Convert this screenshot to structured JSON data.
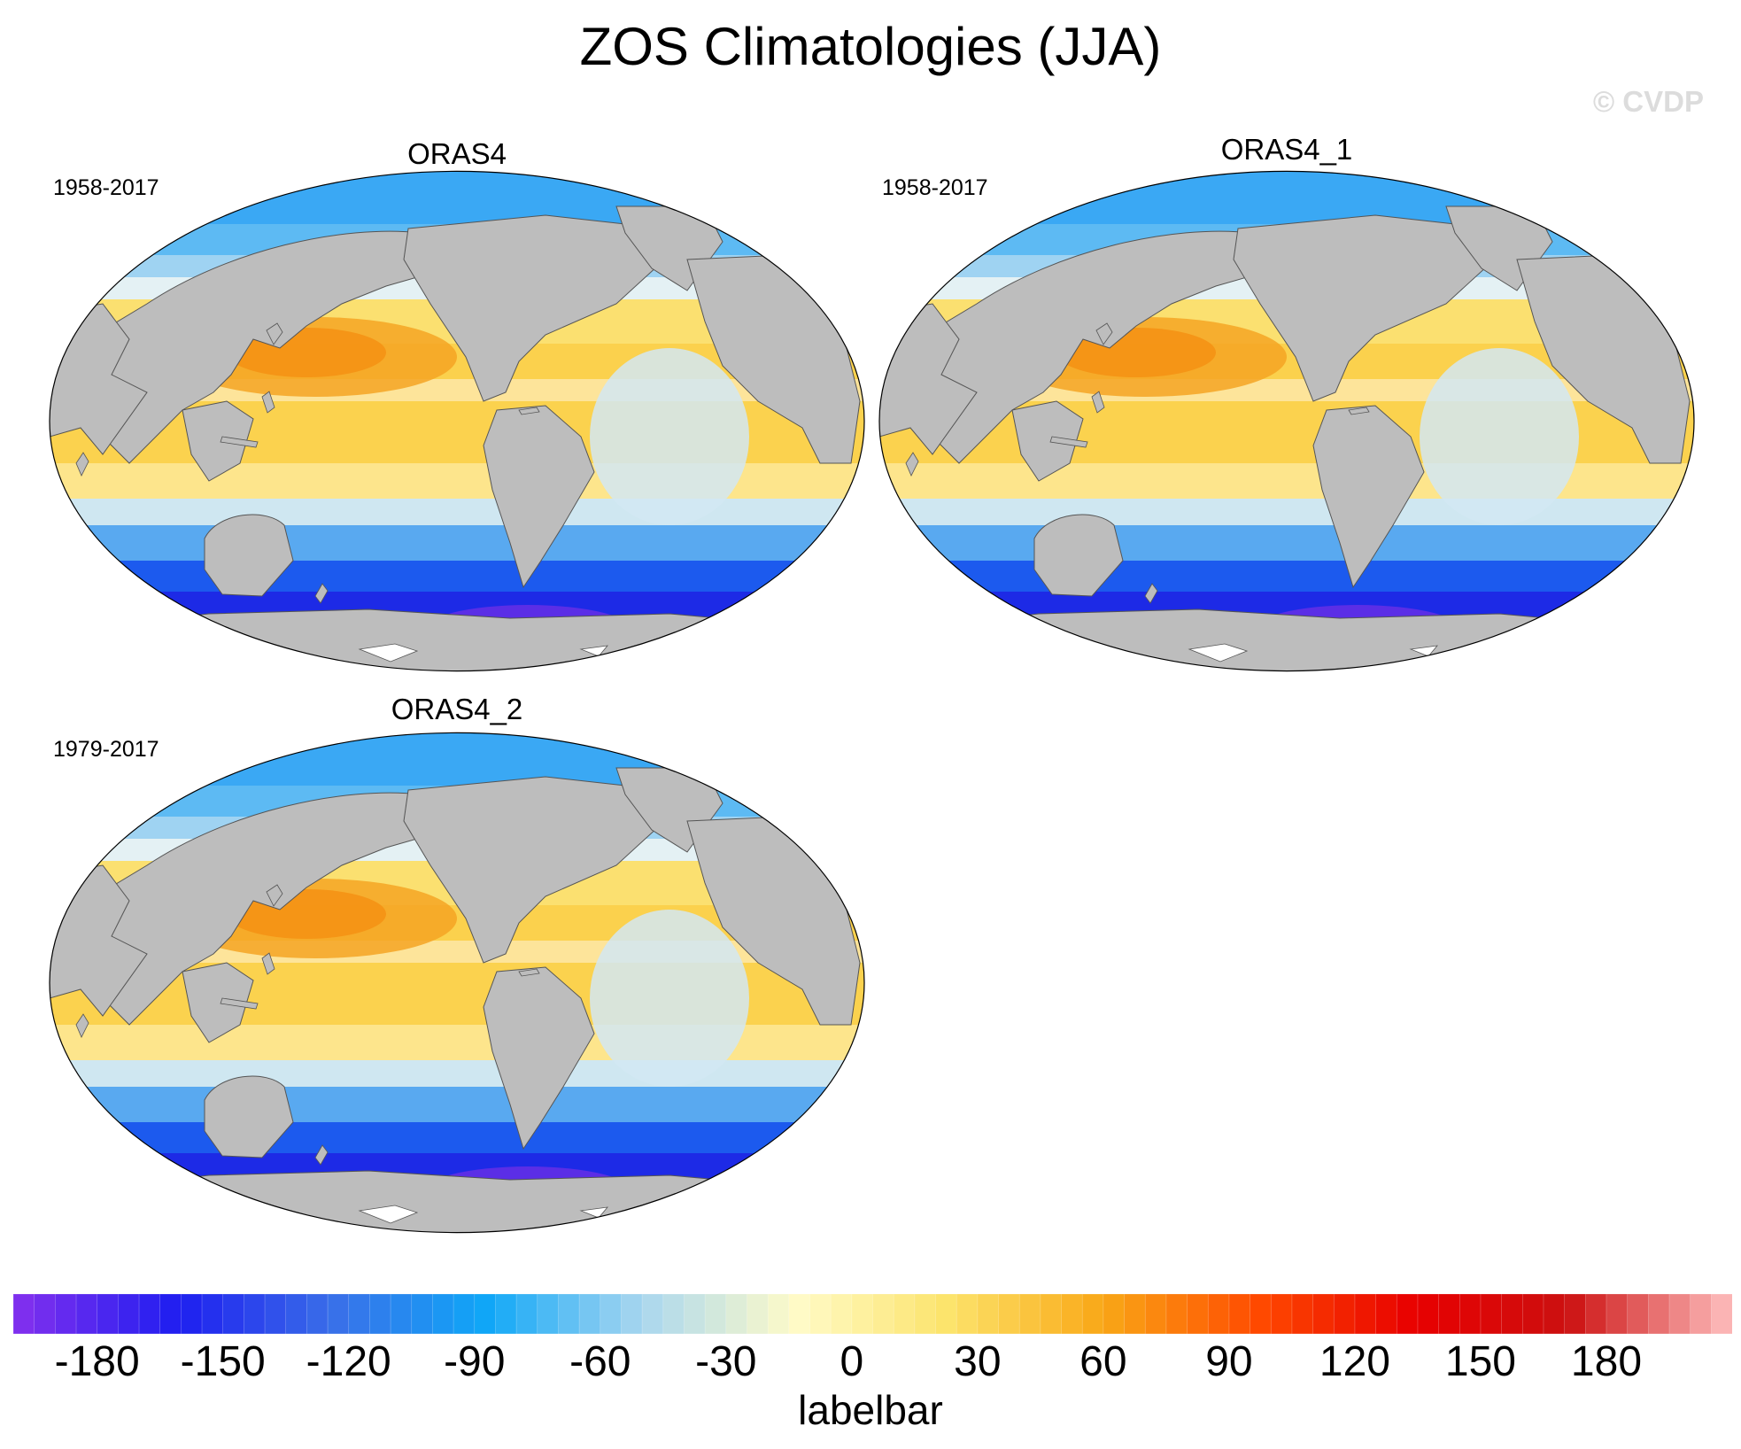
{
  "title": "ZOS Climatologies (JJA)",
  "watermark": "© CVDP",
  "panels": [
    {
      "name": "ORAS4",
      "period": "1958-2017"
    },
    {
      "name": "ORAS4_1",
      "period": "1958-2017"
    },
    {
      "name": "ORAS4_2",
      "period": "1979-2017"
    }
  ],
  "map": {
    "projection": "Robinson",
    "center_longitude": 180,
    "land_color": "#bdbdbd",
    "ice_color": "#ffffff"
  },
  "colorbar": {
    "label": "labelbar",
    "tick_labels": [
      "-180",
      "-150",
      "-120",
      "-90",
      "-60",
      "-30",
      "0",
      "30",
      "60",
      "90",
      "120",
      "150",
      "180"
    ],
    "ticks": [
      -180,
      -150,
      -120,
      -90,
      -60,
      -30,
      0,
      30,
      60,
      90,
      120,
      150,
      180
    ],
    "range": [
      -200,
      210
    ],
    "anchor_colors": [
      "#7e2fee",
      "#1e1ef0",
      "#3a6fe8",
      "#0fa7f7",
      "#a9d6ef",
      "#fffbc8",
      "#fce36a",
      "#f9a716",
      "#ff4a00",
      "#e80000",
      "#cc1010",
      "#fbb4b4"
    ]
  }
}
